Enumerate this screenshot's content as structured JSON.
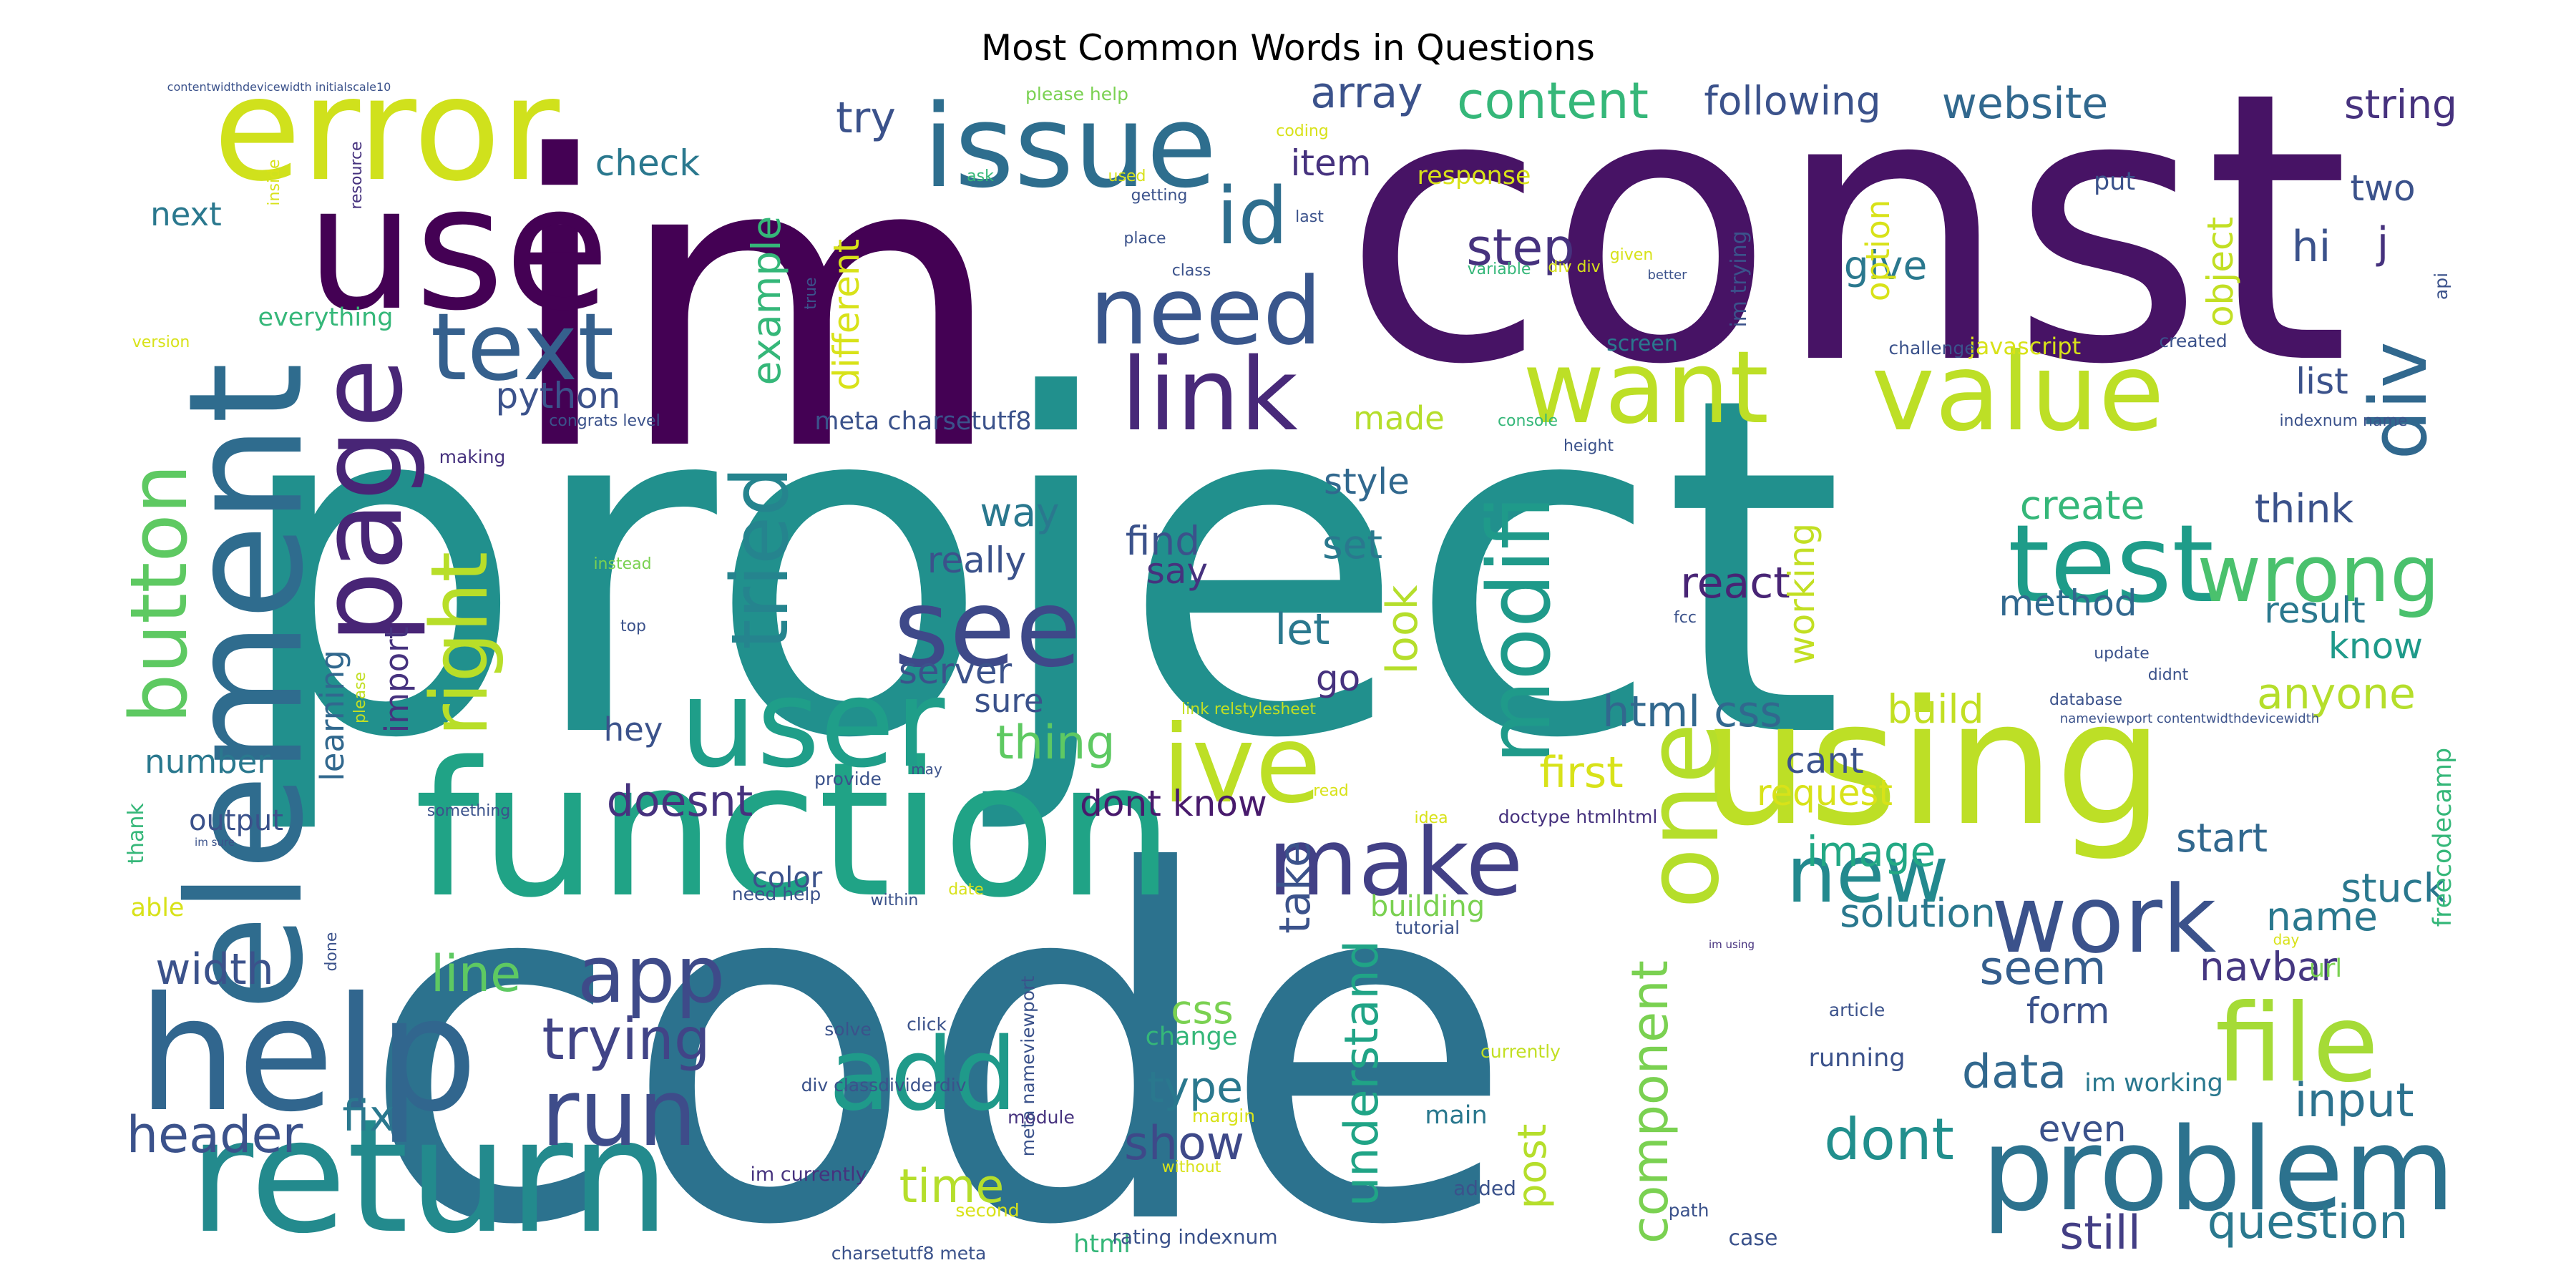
{
  "title": "Most Common Words in Questions",
  "palette": "viridis",
  "words": [
    {
      "text": "project",
      "color": "#21908d"
    },
    {
      "text": "code",
      "color": "#2c728e"
    },
    {
      "text": "im",
      "color": "#440154"
    },
    {
      "text": "const",
      "color": "#471365"
    },
    {
      "text": "function",
      "color": "#20a386"
    },
    {
      "text": "using",
      "color": "#bddf26"
    },
    {
      "text": "return",
      "color": "#238a8d"
    },
    {
      "text": "element",
      "color": "#2f6c8e"
    },
    {
      "text": "use",
      "color": "#440154"
    },
    {
      "text": "error",
      "color": "#d0e11c"
    },
    {
      "text": "help",
      "color": "#31668e"
    },
    {
      "text": "problem",
      "color": "#2c728e"
    },
    {
      "text": "page",
      "color": "#482576"
    },
    {
      "text": "user",
      "color": "#1f9e89"
    },
    {
      "text": "issue",
      "color": "#2e6e8e"
    },
    {
      "text": "ive",
      "color": "#bddf26"
    },
    {
      "text": "work",
      "color": "#3b528b"
    },
    {
      "text": "test",
      "color": "#1e9c89"
    },
    {
      "text": "see",
      "color": "#3e4989"
    },
    {
      "text": "one",
      "color": "#b5de2b"
    },
    {
      "text": "file",
      "color": "#a5db36"
    },
    {
      "text": "make",
      "color": "#424086"
    },
    {
      "text": "value",
      "color": "#bddf26"
    },
    {
      "text": "want",
      "color": "#bddf26"
    },
    {
      "text": "need",
      "color": "#39568c"
    },
    {
      "text": "link",
      "color": "#482979"
    },
    {
      "text": "text",
      "color": "#35608d"
    },
    {
      "text": "add",
      "color": "#1f9a8a"
    },
    {
      "text": "run",
      "color": "#3e4c8a"
    },
    {
      "text": "app",
      "color": "#3e4a89"
    },
    {
      "text": "button",
      "color": "#5ec962"
    },
    {
      "text": "right",
      "color": "#b8de29"
    },
    {
      "text": "modifi",
      "color": "#1f9a8a"
    },
    {
      "text": "wrong",
      "color": "#4ac16d"
    },
    {
      "text": "div",
      "color": "#31688e"
    },
    {
      "text": "new",
      "color": "#23898e"
    },
    {
      "text": "tried",
      "color": "#25848e"
    },
    {
      "text": "id",
      "color": "#2e6e8e"
    },
    {
      "text": "trying",
      "color": "#414487"
    },
    {
      "text": "header",
      "color": "#3b528b"
    },
    {
      "text": "dont",
      "color": "#218f8d"
    },
    {
      "text": "component",
      "color": "#7ad151"
    },
    {
      "text": "understand",
      "color": "#20a486"
    },
    {
      "text": "time",
      "color": "#b5de2b"
    },
    {
      "text": "show",
      "color": "#3e4989"
    },
    {
      "text": "data",
      "color": "#31688e"
    },
    {
      "text": "seem",
      "color": "#355e8d"
    },
    {
      "text": "input",
      "color": "#2c728e"
    },
    {
      "text": "question",
      "color": "#2a788e"
    },
    {
      "text": "still",
      "color": "#433e85"
    },
    {
      "text": "line",
      "color": "#5ec962"
    },
    {
      "text": "width",
      "color": "#3b528b"
    },
    {
      "text": "fix",
      "color": "#2a788e"
    },
    {
      "text": "type",
      "color": "#2a788e"
    },
    {
      "text": "css",
      "color": "#7ad151"
    },
    {
      "text": "navbar",
      "color": "#453781"
    },
    {
      "text": "name",
      "color": "#2a788e"
    },
    {
      "text": "form",
      "color": "#3b528b"
    },
    {
      "text": "even",
      "color": "#3b528b"
    },
    {
      "text": "post",
      "color": "#b5de2b"
    },
    {
      "text": "image",
      "color": "#22a884"
    },
    {
      "text": "solution",
      "color": "#2a788e"
    },
    {
      "text": "stuck",
      "color": "#2a788e"
    },
    {
      "text": "start",
      "color": "#31688e"
    },
    {
      "text": "building",
      "color": "#7ad151"
    },
    {
      "text": "doesnt",
      "color": "#46327e"
    },
    {
      "text": "dont know",
      "color": "#481a6c"
    },
    {
      "text": "first",
      "color": "#d8e219"
    },
    {
      "text": "request",
      "color": "#d8e219"
    },
    {
      "text": "cant",
      "color": "#3b528b"
    },
    {
      "text": "html css",
      "color": "#31688e"
    },
    {
      "text": "build",
      "color": "#c2df23"
    },
    {
      "text": "anyone",
      "color": "#b5de2b"
    },
    {
      "text": "know",
      "color": "#1f9a8a"
    },
    {
      "text": "result",
      "color": "#2a788e"
    },
    {
      "text": "method",
      "color": "#31688e"
    },
    {
      "text": "react",
      "color": "#482475"
    },
    {
      "text": "working",
      "color": "#c2df23"
    },
    {
      "text": "create",
      "color": "#35b779"
    },
    {
      "text": "think",
      "color": "#3b528b"
    },
    {
      "text": "look",
      "color": "#b5de2b"
    },
    {
      "text": "let",
      "color": "#2a788e"
    },
    {
      "text": "go",
      "color": "#46327e"
    },
    {
      "text": "set",
      "color": "#2a788e"
    },
    {
      "text": "style",
      "color": "#31688e"
    },
    {
      "text": "made",
      "color": "#b5de2b"
    },
    {
      "text": "take",
      "color": "#3b528b"
    },
    {
      "text": "find",
      "color": "#3b528b"
    },
    {
      "text": "say",
      "color": "#46327e"
    },
    {
      "text": "really",
      "color": "#3b528b"
    },
    {
      "text": "way",
      "color": "#2a788e"
    },
    {
      "text": "server",
      "color": "#3b528b"
    },
    {
      "text": "sure",
      "color": "#3b528b"
    },
    {
      "text": "thing",
      "color": "#5ec962"
    },
    {
      "text": "hey",
      "color": "#3b528b"
    },
    {
      "text": "number",
      "color": "#2a788e"
    },
    {
      "text": "learning",
      "color": "#31688e"
    },
    {
      "text": "import",
      "color": "#46327e"
    },
    {
      "text": "output",
      "color": "#3b528b"
    },
    {
      "text": "color",
      "color": "#3b528b"
    },
    {
      "text": "example",
      "color": "#35b779"
    },
    {
      "text": "different",
      "color": "#d8e219"
    },
    {
      "text": "python",
      "color": "#3b528b"
    },
    {
      "text": "meta charsetutf8",
      "color": "#3b528b"
    },
    {
      "text": "try",
      "color": "#3b528b"
    },
    {
      "text": "array",
      "color": "#3b528b"
    },
    {
      "text": "item",
      "color": "#46327e"
    },
    {
      "text": "content",
      "color": "#35b779"
    },
    {
      "text": "following",
      "color": "#3b528b"
    },
    {
      "text": "website",
      "color": "#31688e"
    },
    {
      "text": "string",
      "color": "#46327e"
    },
    {
      "text": "step",
      "color": "#46327e"
    },
    {
      "text": "give",
      "color": "#2a788e"
    },
    {
      "text": "hi",
      "color": "#3b528b"
    },
    {
      "text": "j",
      "color": "#46327e"
    },
    {
      "text": "two",
      "color": "#3b528b"
    },
    {
      "text": "object",
      "color": "#c2df23"
    },
    {
      "text": "option",
      "color": "#d8e219"
    },
    {
      "text": "list",
      "color": "#3b528b"
    },
    {
      "text": "check",
      "color": "#2a788e"
    },
    {
      "text": "next",
      "color": "#2a788e"
    },
    {
      "text": "everything",
      "color": "#35b779"
    },
    {
      "text": "screen",
      "color": "#2a788e"
    },
    {
      "text": "im trying",
      "color": "#3b528b"
    },
    {
      "text": "javascript",
      "color": "#d8e219"
    },
    {
      "text": "challenge",
      "color": "#3b528b"
    },
    {
      "text": "created",
      "color": "#3b528b"
    },
    {
      "text": "api",
      "color": "#3b528b"
    },
    {
      "text": "indexnum name",
      "color": "#3b528b"
    },
    {
      "text": "congrats level",
      "color": "#3b528b"
    },
    {
      "text": "console",
      "color": "#35b779"
    },
    {
      "text": "height",
      "color": "#3b528b"
    },
    {
      "text": "freecodecamp",
      "color": "#35b779"
    },
    {
      "text": "url",
      "color": "#7ad151"
    },
    {
      "text": "im working",
      "color": "#2a788e"
    },
    {
      "text": "running",
      "color": "#3b528b"
    },
    {
      "text": "article",
      "color": "#3b528b"
    },
    {
      "text": "change",
      "color": "#35b779"
    },
    {
      "text": "case",
      "color": "#3b528b"
    },
    {
      "text": "main",
      "color": "#2a788e"
    },
    {
      "text": "added",
      "color": "#3b528b"
    },
    {
      "text": "currently",
      "color": "#c2df23"
    },
    {
      "text": "html",
      "color": "#35b779"
    },
    {
      "text": "rating indexnum",
      "color": "#3b528b"
    },
    {
      "text": "charsetutf8 meta",
      "color": "#3b528b"
    },
    {
      "text": "second",
      "color": "#d8e219"
    },
    {
      "text": "path",
      "color": "#3b528b"
    },
    {
      "text": "without",
      "color": "#d8e219"
    },
    {
      "text": "margin",
      "color": "#d8e219"
    },
    {
      "text": "im currently",
      "color": "#46327e"
    },
    {
      "text": "module",
      "color": "#46327e"
    },
    {
      "text": "div classdividerdiv",
      "color": "#3b528b"
    },
    {
      "text": "meta nameviewport",
      "color": "#3b528b"
    },
    {
      "text": "solve",
      "color": "#3b528b"
    },
    {
      "text": "click",
      "color": "#3b528b"
    },
    {
      "text": "tutorial",
      "color": "#3b528b"
    },
    {
      "text": "date",
      "color": "#d8e219"
    },
    {
      "text": "within",
      "color": "#3b528b"
    },
    {
      "text": "need help",
      "color": "#3b528b"
    },
    {
      "text": "done",
      "color": "#3b528b"
    },
    {
      "text": "able",
      "color": "#d8e219"
    },
    {
      "text": "thank",
      "color": "#35b779"
    },
    {
      "text": "something",
      "color": "#3b528b"
    },
    {
      "text": "provide",
      "color": "#3b528b"
    },
    {
      "text": "may",
      "color": "#3b528b"
    },
    {
      "text": "read",
      "color": "#d8e219"
    },
    {
      "text": "idea",
      "color": "#d8e219"
    },
    {
      "text": "doctype htmlhtml",
      "color": "#46327e"
    },
    {
      "text": "link relstylesheet",
      "color": "#c2df23"
    },
    {
      "text": "please",
      "color": "#c2df23"
    },
    {
      "text": "database",
      "color": "#3b528b"
    },
    {
      "text": "nameviewport contentwidthdevicewidth",
      "color": "#3b528b"
    },
    {
      "text": "didnt",
      "color": "#3b528b"
    },
    {
      "text": "update",
      "color": "#3b528b"
    },
    {
      "text": "fcc",
      "color": "#3b528b"
    },
    {
      "text": "top",
      "color": "#3b528b"
    },
    {
      "text": "instead",
      "color": "#7ad151"
    },
    {
      "text": "making",
      "color": "#46327e"
    },
    {
      "text": "version",
      "color": "#d8e219"
    },
    {
      "text": "true",
      "color": "#3b528b"
    },
    {
      "text": "class",
      "color": "#3b528b"
    },
    {
      "text": "variable",
      "color": "#35b779"
    },
    {
      "text": "div div",
      "color": "#d8e219"
    },
    {
      "text": "given",
      "color": "#d8e219"
    },
    {
      "text": "better",
      "color": "#3b528b"
    },
    {
      "text": "place",
      "color": "#3b528b"
    },
    {
      "text": "last",
      "color": "#3b528b"
    },
    {
      "text": "getting",
      "color": "#3b528b"
    },
    {
      "text": "response",
      "color": "#d8e219"
    },
    {
      "text": "put",
      "color": "#3b528b"
    },
    {
      "text": "used",
      "color": "#d8e219"
    },
    {
      "text": "ask",
      "color": "#35b779"
    },
    {
      "text": "coding",
      "color": "#d8e219"
    },
    {
      "text": "please help",
      "color": "#7ad151"
    },
    {
      "text": "resource",
      "color": "#46327e"
    },
    {
      "text": "inside",
      "color": "#d8e219"
    },
    {
      "text": "contentwidthdevicewidth initialscale10",
      "color": "#3b528b"
    },
    {
      "text": "im sure",
      "color": "#3b528b"
    },
    {
      "text": "im using",
      "color": "#46327e"
    },
    {
      "text": "day",
      "color": "#d8e219"
    }
  ]
}
